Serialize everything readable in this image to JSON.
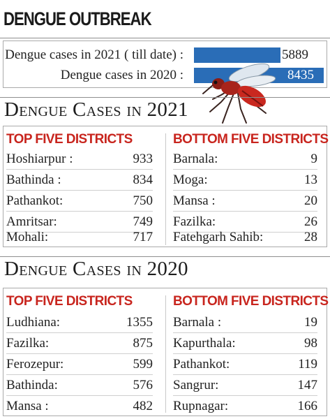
{
  "title": "DENGUE OUTBREAK",
  "summary": {
    "rows": [
      {
        "label": "Dengue cases in 2021 ( till date) :",
        "value": "5889",
        "count": 5889
      },
      {
        "label": "Dengue cases in 2020 :",
        "value": "8435",
        "count": 8435
      }
    ],
    "bar_color": "#2a6db7"
  },
  "sections": [
    {
      "heading": "Dengue Cases in 2021",
      "top_label": "TOP FIVE DISTRICTS",
      "bottom_label": "BOTTOM FIVE DISTRICTS",
      "top": [
        {
          "name": "Hoshiarpur :",
          "value": "933"
        },
        {
          "name": "Bathinda :",
          "value": "834"
        },
        {
          "name": "Pathankot:",
          "value": "750"
        },
        {
          "name": "Amritsar:",
          "value": "749"
        },
        {
          "name": "Mohali:",
          "value": "717"
        }
      ],
      "bottom": [
        {
          "name": "Barnala:",
          "value": "9"
        },
        {
          "name": "Moga:",
          "value": "13"
        },
        {
          "name": "Mansa :",
          "value": "20"
        },
        {
          "name": "Fazilka:",
          "value": "26"
        },
        {
          "name": "Fatehgarh Sahib:",
          "value": "28"
        }
      ]
    },
    {
      "heading": "Dengue Cases in 2020",
      "top_label": "TOP FIVE DISTRICTS",
      "bottom_label": "BOTTOM FIVE DISTRICTS",
      "top": [
        {
          "name": "Ludhiana:",
          "value": "1355"
        },
        {
          "name": "Fazilka:",
          "value": "875"
        },
        {
          "name": "Ferozepur:",
          "value": "599"
        },
        {
          "name": "Bathinda:",
          "value": "576"
        },
        {
          "name": "Mansa :",
          "value": "482"
        }
      ],
      "bottom": [
        {
          "name": "Barnala :",
          "value": "19"
        },
        {
          "name": "Kapurthala:",
          "value": "98"
        },
        {
          "name": "Pathankot:",
          "value": "119"
        },
        {
          "name": "Sangrur:",
          "value": "147"
        },
        {
          "name": "Rupnagar:",
          "value": "166"
        }
      ]
    }
  ],
  "accent_color": "#c8251e",
  "icons": [
    "mosquito-icon"
  ],
  "chart_data": {
    "type": "bar",
    "categories": [
      "Dengue cases in 2021 ( till date)",
      "Dengue cases in 2020"
    ],
    "values": [
      5889,
      8435
    ],
    "title": "DENGUE OUTBREAK",
    "xlabel": "",
    "ylabel": "",
    "ylim": [
      0,
      8435
    ]
  }
}
